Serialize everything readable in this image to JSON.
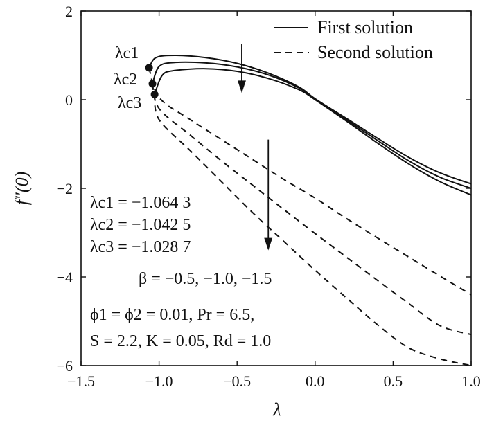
{
  "chart_data": {
    "type": "line",
    "xlabel": "λ",
    "ylabel": "f\"(0)",
    "xlim": [
      -1.5,
      1.0
    ],
    "ylim": [
      -6,
      2
    ],
    "xticks": [
      -1.5,
      -1.0,
      -0.5,
      0.0,
      0.5,
      1.0
    ],
    "xtick_labels": [
      "−1.5",
      "−1.0",
      "−0.5",
      "0.0",
      "0.5",
      "1.0"
    ],
    "yticks": [
      -6,
      -4,
      -2,
      0,
      2
    ],
    "ytick_labels": [
      "−6",
      "−4",
      "−2",
      "0",
      "2"
    ],
    "grid": false,
    "legend": {
      "placement": "top-right",
      "entries": [
        {
          "label": "First solution",
          "style": "solid"
        },
        {
          "label": "Second solution",
          "style": "dashed"
        }
      ]
    },
    "series": [
      {
        "group": "first",
        "style": "solid",
        "x": [
          -1.0643,
          -1.02,
          -0.9,
          -0.7,
          -0.5,
          -0.3,
          -0.1,
          0.0,
          0.2,
          0.4,
          0.6,
          0.8,
          1.0
        ],
        "y": [
          0.72,
          0.95,
          1.0,
          0.95,
          0.82,
          0.6,
          0.28,
          0.02,
          -0.42,
          -0.87,
          -1.3,
          -1.65,
          -1.9
        ]
      },
      {
        "group": "first",
        "style": "solid",
        "x": [
          -1.0425,
          -1.0,
          -0.9,
          -0.7,
          -0.5,
          -0.3,
          -0.1,
          0.0,
          0.2,
          0.4,
          0.6,
          0.8,
          1.0
        ],
        "y": [
          0.36,
          0.75,
          0.84,
          0.83,
          0.74,
          0.56,
          0.26,
          0.02,
          -0.45,
          -0.92,
          -1.38,
          -1.75,
          -2.0
        ]
      },
      {
        "group": "first",
        "style": "solid",
        "x": [
          -1.0287,
          -0.98,
          -0.9,
          -0.7,
          -0.5,
          -0.3,
          -0.1,
          0.0,
          0.2,
          0.4,
          0.6,
          0.8,
          1.0
        ],
        "y": [
          0.12,
          0.55,
          0.66,
          0.7,
          0.64,
          0.48,
          0.22,
          0.0,
          -0.48,
          -0.98,
          -1.45,
          -1.85,
          -2.15
        ]
      },
      {
        "group": "second",
        "style": "dashed",
        "x": [
          -1.0643,
          -1.0,
          -0.8,
          -0.6,
          -0.4,
          -0.2,
          0.0,
          0.2,
          0.4,
          0.6,
          0.8,
          1.0
        ],
        "y": [
          0.72,
          0.05,
          -0.45,
          -0.9,
          -1.35,
          -1.8,
          -2.22,
          -2.68,
          -3.12,
          -3.55,
          -3.98,
          -4.4
        ]
      },
      {
        "group": "second",
        "style": "dashed",
        "x": [
          -1.0425,
          -1.0,
          -0.8,
          -0.6,
          -0.4,
          -0.2,
          0.0,
          0.2,
          0.4,
          0.6,
          0.8,
          1.0
        ],
        "y": [
          0.36,
          -0.2,
          -0.8,
          -1.38,
          -1.93,
          -2.48,
          -3.02,
          -3.55,
          -4.08,
          -4.6,
          -5.1,
          -5.3
        ]
      },
      {
        "group": "second",
        "style": "dashed",
        "x": [
          -1.0287,
          -1.0,
          -0.8,
          -0.6,
          -0.4,
          -0.2,
          0.0,
          0.2,
          0.4,
          0.6,
          0.8,
          1.0
        ],
        "y": [
          0.12,
          -0.45,
          -1.15,
          -1.85,
          -2.55,
          -3.2,
          -3.85,
          -4.47,
          -5.08,
          -5.6,
          -5.85,
          -6.0
        ]
      }
    ],
    "critical_points": [
      {
        "label": "λc1",
        "x": -1.0643,
        "y": 0.72
      },
      {
        "label": "λc2",
        "x": -1.0425,
        "y": 0.36
      },
      {
        "label": "λc3",
        "x": -1.0287,
        "y": 0.12
      }
    ],
    "arrows": [
      {
        "x": -0.47,
        "y_from": 1.25,
        "y_to": 0.15
      },
      {
        "x": -0.3,
        "y_from": -0.9,
        "y_to": -3.4
      }
    ]
  },
  "annotations": {
    "critical_values": [
      "λc1 = −1.064 3",
      "λc2 = −1.042 5",
      "λc3 = −1.028 7"
    ],
    "beta": "β = −0.5, −1.0, −1.5",
    "params1": "ϕ1 = ϕ2 = 0.01, Pr = 6.5,",
    "params2": "S = 2.2, K = 0.05, Rd = 1.0"
  },
  "colors": {
    "ink": "#111111",
    "background": "#ffffff"
  }
}
